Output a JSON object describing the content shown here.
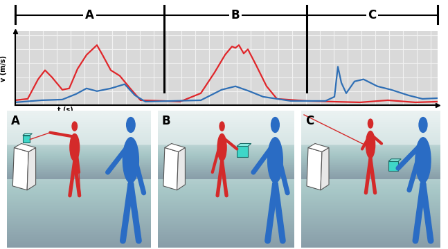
{
  "chart_data": {
    "type": "line",
    "x_label": "t (s)",
    "y_label": "v (m/s)",
    "xlim": [
      0,
      30.5
    ],
    "ylim": [
      0,
      5.3
    ],
    "xticks": [
      0,
      1,
      2,
      3,
      4,
      5,
      6,
      7,
      8,
      9,
      10,
      11,
      12,
      13,
      14,
      15,
      16,
      17,
      18,
      19,
      20,
      21,
      22,
      23,
      24,
      25,
      26,
      27,
      28,
      29,
      30
    ],
    "yticks": [
      0,
      1,
      2,
      3,
      4,
      5
    ],
    "grid": true,
    "tick_labels": false,
    "segments": [
      {
        "label": "A",
        "start": 0,
        "end": 10.75
      },
      {
        "label": "B",
        "start": 10.75,
        "end": 21.05
      },
      {
        "label": "C",
        "start": 21.05,
        "end": 30.5
      }
    ],
    "series": [
      {
        "color": "#e0262a",
        "x": [
          0,
          0.9,
          1.65,
          2.15,
          2.65,
          3.4,
          3.9,
          4.5,
          5.15,
          5.9,
          6.3,
          6.9,
          7.55,
          8.3,
          9.05,
          10.75,
          11.9,
          13.4,
          14.4,
          15.15,
          15.65,
          15.9,
          16.15,
          16.5,
          16.8,
          17.4,
          18.15,
          18.9,
          21.05,
          22.9,
          24.9,
          26.9,
          28.9,
          30.5
        ],
        "values": [
          0.35,
          0.45,
          1.85,
          2.5,
          2.0,
          1.1,
          1.2,
          2.6,
          3.6,
          4.3,
          3.6,
          2.5,
          2.1,
          1.2,
          0.35,
          0.3,
          0.25,
          0.85,
          2.35,
          3.6,
          4.2,
          4.1,
          4.3,
          3.7,
          4.0,
          2.85,
          1.35,
          0.45,
          0.3,
          0.25,
          0.2,
          0.35,
          0.2,
          0.25
        ]
      },
      {
        "color": "#2f6fb5",
        "x": [
          0,
          1.9,
          3.4,
          4.4,
          5.15,
          5.9,
          6.9,
          7.9,
          8.65,
          9.4,
          13.4,
          14.9,
          15.9,
          16.9,
          17.9,
          19.9,
          22.4,
          23.05,
          23.3,
          23.55,
          23.9,
          24.5,
          25.15,
          26.15,
          27.15,
          28.4,
          29.4,
          30.5
        ],
        "values": [
          0.2,
          0.35,
          0.4,
          0.8,
          1.2,
          1.0,
          1.2,
          1.5,
          0.7,
          0.25,
          0.35,
          1.1,
          1.35,
          1.0,
          0.6,
          0.3,
          0.3,
          0.6,
          2.75,
          1.6,
          0.85,
          1.7,
          1.85,
          1.35,
          1.1,
          0.7,
          0.45,
          0.5
        ]
      }
    ]
  },
  "panels": [
    {
      "label": "A"
    },
    {
      "label": "B"
    },
    {
      "label": "C"
    }
  ]
}
